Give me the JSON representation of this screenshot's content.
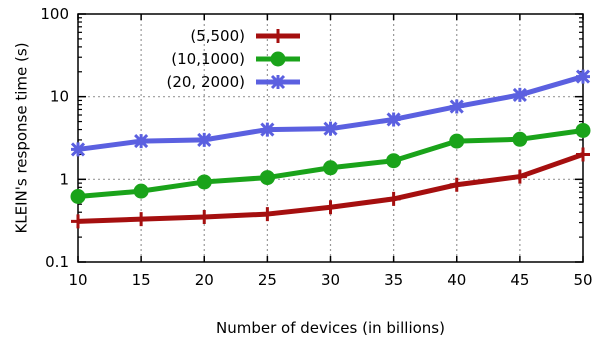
{
  "chart_data": {
    "type": "line",
    "xlabel": "Number of devices (in billions)",
    "ylabel": "KLEIN's response time (s)",
    "x": [
      10,
      15,
      20,
      25,
      30,
      35,
      40,
      45,
      50
    ],
    "x_ticks": [
      "10",
      "15",
      "20",
      "25",
      "30",
      "35",
      "40",
      "45",
      "50"
    ],
    "y_scale": "log",
    "ylim": [
      0.1,
      100
    ],
    "y_ticks": [
      "0.1",
      "1",
      "10",
      "100"
    ],
    "grid": true,
    "legend_position": "top-left",
    "series": [
      {
        "name": "(5,500)",
        "color": "#a50f0f",
        "marker": "plus",
        "values": [
          0.31,
          0.33,
          0.35,
          0.38,
          0.46,
          0.58,
          0.86,
          1.08,
          2.0
        ]
      },
      {
        "name": "(10,1000)",
        "color": "#1aa31a",
        "marker": "circle",
        "values": [
          0.62,
          0.72,
          0.93,
          1.05,
          1.38,
          1.68,
          2.9,
          3.05,
          3.9
        ]
      },
      {
        "name": "(20, 2000)",
        "color": "#5b60e0",
        "marker": "star",
        "values": [
          2.3,
          2.9,
          3.0,
          4.0,
          4.1,
          5.3,
          7.6,
          10.5,
          17.5
        ]
      }
    ]
  }
}
